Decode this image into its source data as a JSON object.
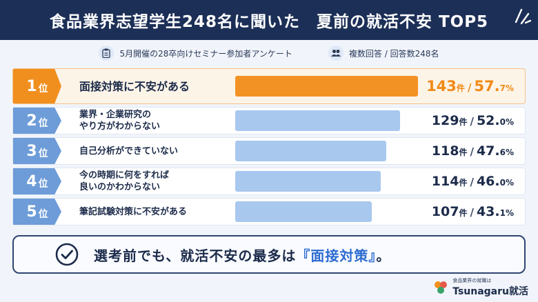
{
  "header": {
    "title": "食品業界志望学生248名に聞いた　夏前の就活不安 TOP5"
  },
  "meta": {
    "survey": "5月開催の28卒向けセミナー参加者アンケート",
    "responses": "複数回答 / 回答数248名"
  },
  "rank_unit": "位",
  "count_unit": "件",
  "separator": "/",
  "rows": [
    {
      "rank": "1",
      "label_lines": [
        "面接対策に不安がある"
      ],
      "count": "143",
      "percent_main": "57.",
      "percent_tail": "7%",
      "share": 57.7
    },
    {
      "rank": "2",
      "label_lines": [
        "業界・企業研究の",
        "やり方がわからない"
      ],
      "count": "129",
      "percent_main": "52.",
      "percent_tail": "0%",
      "share": 52.0
    },
    {
      "rank": "3",
      "label_lines": [
        "自己分析ができていない"
      ],
      "count": "118",
      "percent_main": "47.",
      "percent_tail": "6%",
      "share": 47.6
    },
    {
      "rank": "4",
      "label_lines": [
        "今の時期に何をすれば",
        "良いのかわからない"
      ],
      "count": "114",
      "percent_main": "46.",
      "percent_tail": "0%",
      "share": 46.0
    },
    {
      "rank": "5",
      "label_lines": [
        "筆記試験対策に不安がある"
      ],
      "count": "107",
      "percent_main": "43.",
      "percent_tail": "1%",
      "share": 43.1
    }
  ],
  "callout": {
    "before": "選考前でも、就活不安の最多は",
    "highlight": "『面接対策』",
    "after": "。"
  },
  "logo": {
    "sub": "食品業界の就職は",
    "main": "Tsunagaru就活"
  },
  "colors": {
    "navy": "#1c2f57",
    "orange": "#f18f1e",
    "blue": "#6d9cd8",
    "bar_blue": "#a8c8ee",
    "accent": "#2d6bd1"
  },
  "icons": {
    "survey": "clipboard-icon",
    "responses": "people-icon",
    "callout": "check-circle-icon",
    "deco": "sparkle-icon"
  }
}
